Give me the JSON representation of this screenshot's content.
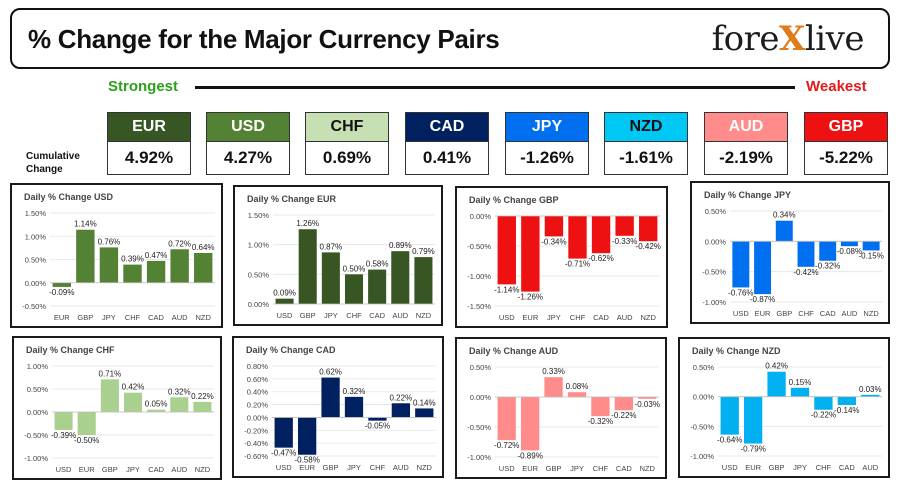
{
  "header": {
    "title": "% Change for the Major Currency Pairs",
    "logo_text_left": "fore",
    "logo_text_x": "X",
    "logo_text_right": "live"
  },
  "strongest_label": "Strongest",
  "weakest_label": "Weakest",
  "cumulative_label_1": "Cumulative",
  "cumulative_label_2": "Change",
  "cumulative": [
    {
      "name": "EUR",
      "value": "4.92%",
      "color": "#375623",
      "text": "#ffffff"
    },
    {
      "name": "USD",
      "value": "4.27%",
      "color": "#548235",
      "text": "#ffffff"
    },
    {
      "name": "CHF",
      "value": "0.69%",
      "color": "#c6e0b4",
      "text": "#111111"
    },
    {
      "name": "CAD",
      "value": "0.41%",
      "color": "#002060",
      "text": "#ffffff"
    },
    {
      "name": "JPY",
      "value": "-1.26%",
      "color": "#0070f0",
      "text": "#ffffff"
    },
    {
      "name": "NZD",
      "value": "-1.61%",
      "color": "#00c8f5",
      "text": "#111111"
    },
    {
      "name": "AUD",
      "value": "-2.19%",
      "color": "#ff8b8b",
      "text": "#ffffff"
    },
    {
      "name": "GBP",
      "value": "-5.22%",
      "color": "#ee1111",
      "text": "#ffffff"
    }
  ],
  "chart_data": [
    {
      "type": "bar",
      "title": "Daily % Change USD",
      "color": "#548235",
      "categories": [
        "EUR",
        "GBP",
        "JPY",
        "CHF",
        "CAD",
        "AUD",
        "NZD"
      ],
      "values": [
        -0.09,
        1.14,
        0.76,
        0.39,
        0.47,
        0.72,
        0.64
      ],
      "labels": [
        "-0.09%",
        "1.14%",
        "0.76%",
        "0.39%",
        "0.47%",
        "0.72%",
        "0.64%"
      ],
      "ylim": [
        -0.5,
        1.5
      ],
      "yticks": [
        -0.5,
        0,
        0.5,
        1,
        1.5
      ],
      "yticklabels": [
        "-0.50%",
        "0.00%",
        "0.50%",
        "1.00%",
        "1.50%"
      ]
    },
    {
      "type": "bar",
      "title": "Daily % Change EUR",
      "color": "#375623",
      "categories": [
        "USD",
        "GBP",
        "JPY",
        "CHF",
        "CAD",
        "AUD",
        "NZD"
      ],
      "values": [
        0.09,
        1.26,
        0.87,
        0.5,
        0.58,
        0.89,
        0.79
      ],
      "labels": [
        "0.09%",
        "1.26%",
        "0.87%",
        "0.50%",
        "0.58%",
        "0.89%",
        "0.79%"
      ],
      "ylim": [
        0,
        1.5
      ],
      "yticks": [
        0,
        0.5,
        1,
        1.5
      ],
      "yticklabels": [
        "0.00%",
        "0.50%",
        "1.00%",
        "1.50%"
      ]
    },
    {
      "type": "bar",
      "title": "Daily % Change GBP",
      "color": "#ee1111",
      "categories": [
        "USD",
        "EUR",
        "JPY",
        "CHF",
        "CAD",
        "AUD",
        "NZD"
      ],
      "values": [
        -1.14,
        -1.26,
        -0.34,
        -0.71,
        -0.62,
        -0.33,
        -0.42
      ],
      "labels": [
        "-1.14%",
        "-1.26%",
        "-0.34%",
        "-0.71%",
        "-0.62%",
        "-0.33%",
        "-0.42%"
      ],
      "ylim": [
        -1.5,
        0
      ],
      "yticks": [
        -1.5,
        -1,
        -0.5,
        0
      ],
      "yticklabels": [
        "-1.50%",
        "-1.00%",
        "-0.50%",
        "0.00%"
      ]
    },
    {
      "type": "bar",
      "title": "Daily % Change JPY",
      "color": "#0070f0",
      "categories": [
        "USD",
        "EUR",
        "GBP",
        "CHF",
        "CAD",
        "AUD",
        "NZD"
      ],
      "values": [
        -0.76,
        -0.87,
        0.34,
        -0.42,
        -0.32,
        -0.08,
        -0.15
      ],
      "labels": [
        "-0.76%",
        "-0.87%",
        "0.34%",
        "-0.42%",
        "-0.32%",
        "-0.08%",
        "-0.15%"
      ],
      "ylim": [
        -1,
        0.5
      ],
      "yticks": [
        -1,
        -0.5,
        0,
        0.5
      ],
      "yticklabels": [
        "-1.00%",
        "-0.50%",
        "0.00%",
        "0.50%"
      ]
    },
    {
      "type": "bar",
      "title": "Daily % Change CHF",
      "color": "#a9d08e",
      "categories": [
        "USD",
        "EUR",
        "GBP",
        "JPY",
        "CAD",
        "AUD",
        "NZD"
      ],
      "values": [
        -0.39,
        -0.5,
        0.71,
        0.42,
        0.05,
        0.32,
        0.22
      ],
      "labels": [
        "-0.39%",
        "-0.50%",
        "0.71%",
        "0.42%",
        "0.05%",
        "0.32%",
        "0.22%"
      ],
      "ylim": [
        -1,
        1
      ],
      "yticks": [
        -1,
        -0.5,
        0,
        0.5,
        1
      ],
      "yticklabels": [
        "-1.00%",
        "-0.50%",
        "0.00%",
        "0.50%",
        "1.00%"
      ]
    },
    {
      "type": "bar",
      "title": "Daily % Change CAD",
      "color": "#002060",
      "categories": [
        "USD",
        "EUR",
        "GBP",
        "JPY",
        "CHF",
        "AUD",
        "NZD"
      ],
      "values": [
        -0.47,
        -0.58,
        0.62,
        0.32,
        -0.05,
        0.22,
        0.14
      ],
      "labels": [
        "-0.47%",
        "-0.58%",
        "0.62%",
        "0.32%",
        "-0.05%",
        "0.22%",
        "0.14%"
      ],
      "ylim": [
        -0.6,
        0.8
      ],
      "yticks": [
        -0.6,
        -0.4,
        -0.2,
        0,
        0.2,
        0.4,
        0.6,
        0.8
      ],
      "yticklabels": [
        "-0.60%",
        "-0.40%",
        "-0.20%",
        "0.00%",
        "0.20%",
        "0.40%",
        "0.60%",
        "0.80%"
      ]
    },
    {
      "type": "bar",
      "title": "Daily % Change AUD",
      "color": "#ff8b8b",
      "categories": [
        "USD",
        "EUR",
        "GBP",
        "JPY",
        "CHF",
        "CAD",
        "NZD"
      ],
      "values": [
        -0.72,
        -0.89,
        0.33,
        0.08,
        -0.32,
        -0.22,
        -0.03
      ],
      "labels": [
        "-0.72%",
        "-0.89%",
        "0.33%",
        "0.08%",
        "-0.32%",
        "-0.22%",
        "-0.03%"
      ],
      "ylim": [
        -1,
        0.5
      ],
      "yticks": [
        -1,
        -0.5,
        0,
        0.5
      ],
      "yticklabels": [
        "-1.00%",
        "-0.50%",
        "0.00%",
        "0.50%"
      ]
    },
    {
      "type": "bar",
      "title": "Daily % Change NZD",
      "color": "#00b0f0",
      "categories": [
        "USD",
        "EUR",
        "GBP",
        "JPY",
        "CHF",
        "CAD",
        "AUD"
      ],
      "values": [
        -0.64,
        -0.79,
        0.42,
        0.15,
        -0.22,
        -0.14,
        0.03
      ],
      "labels": [
        "-0.64%",
        "-0.79%",
        "0.42%",
        "0.15%",
        "-0.22%",
        "-0.14%",
        "0.03%"
      ],
      "ylim": [
        -1,
        0.5
      ],
      "yticks": [
        -1,
        -0.5,
        0,
        0.5
      ],
      "yticklabels": [
        "-1.00%",
        "-0.50%",
        "0.00%",
        "0.50%"
      ]
    }
  ]
}
